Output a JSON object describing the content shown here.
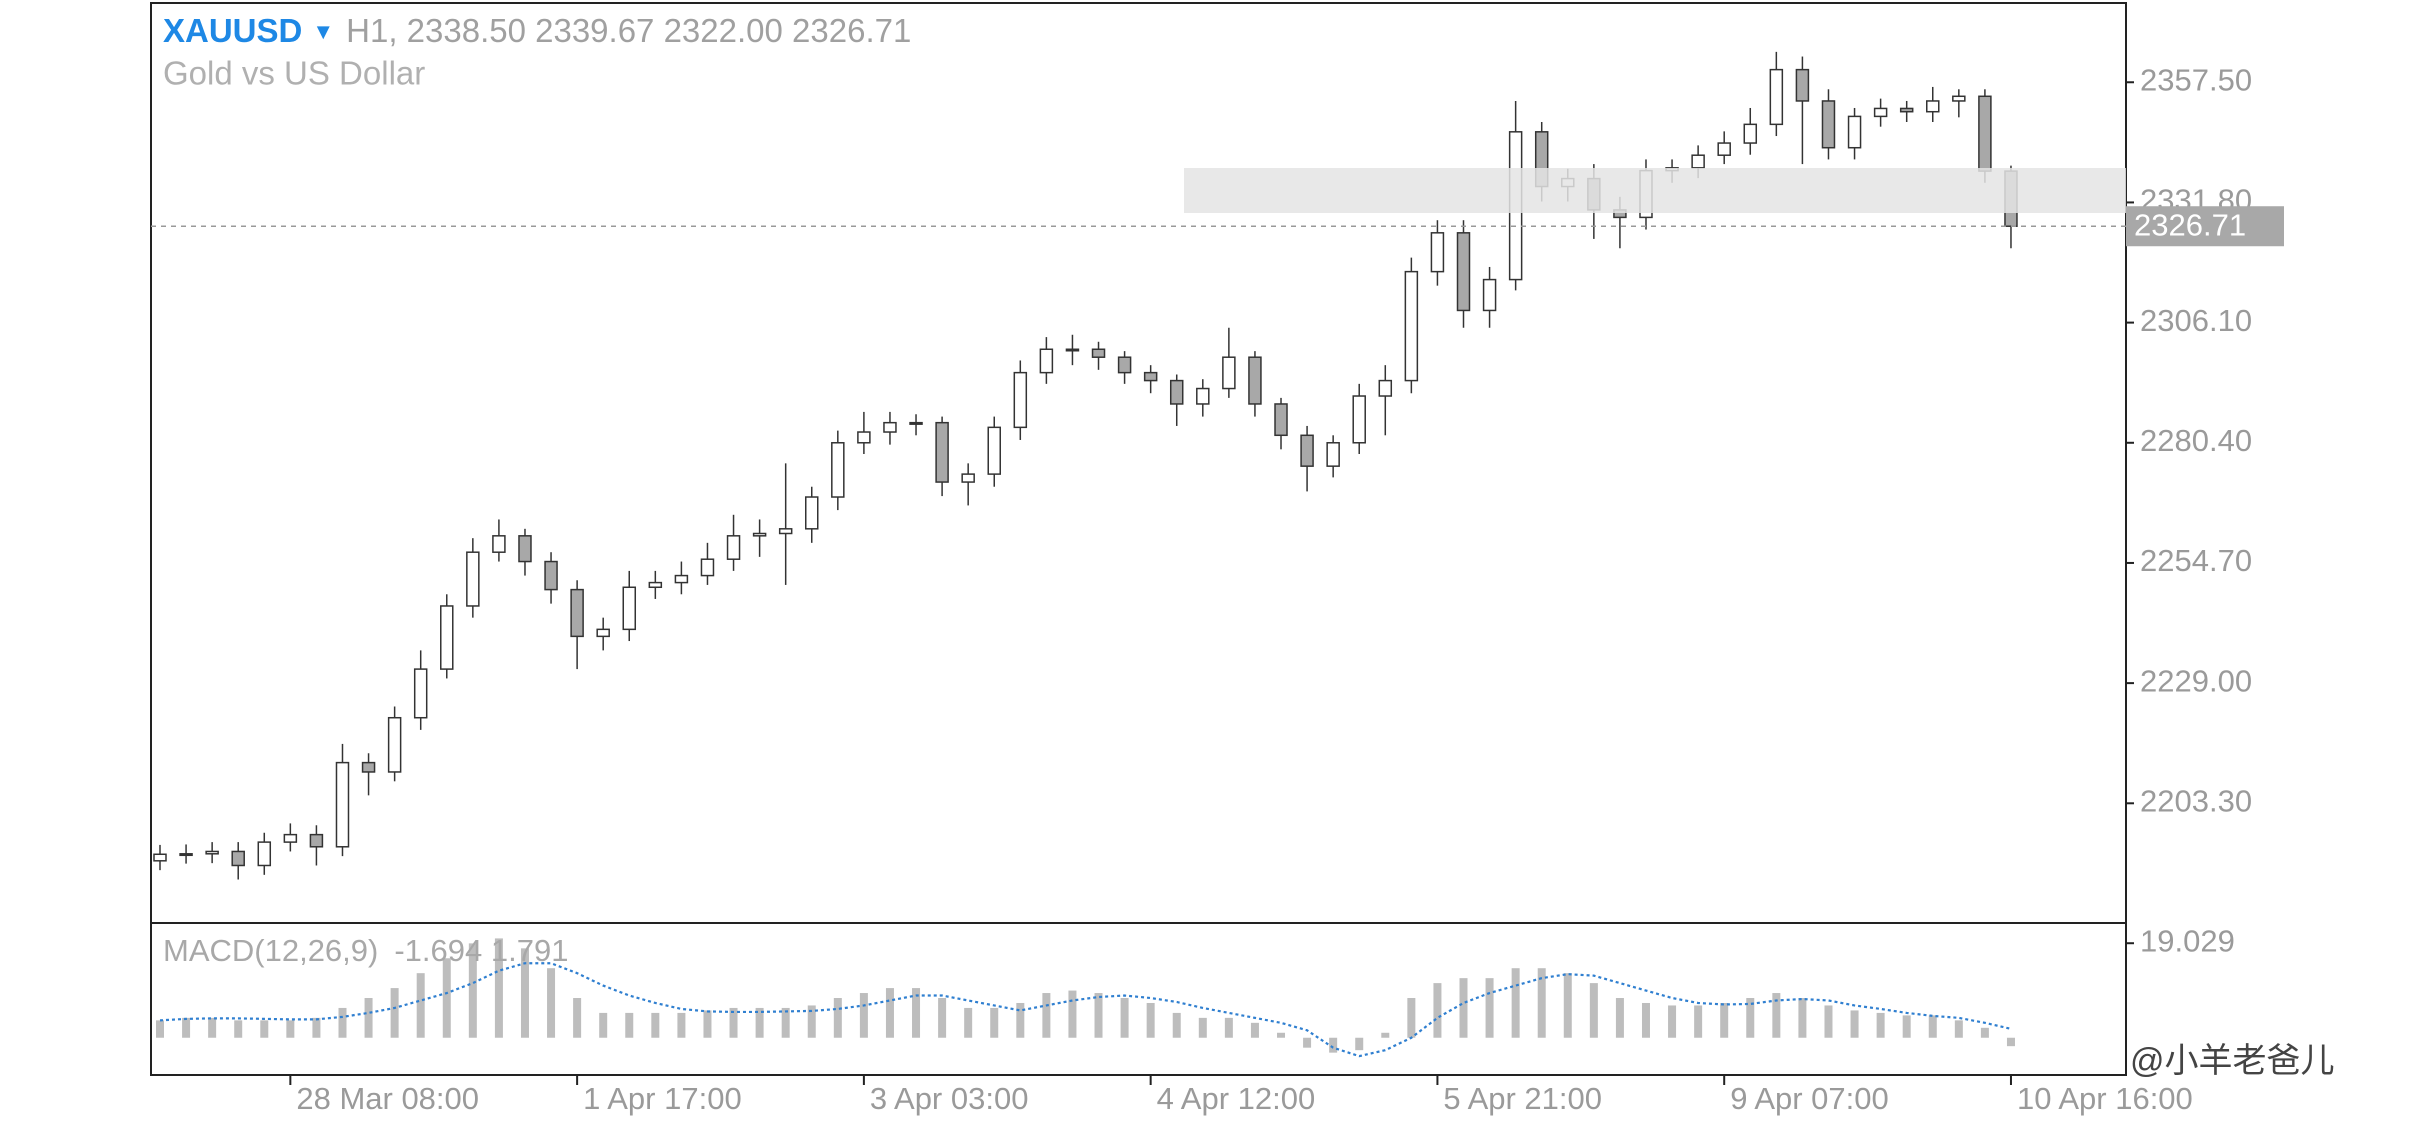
{
  "chart_data": [
    {
      "type": "candlestick",
      "title": "XAUUSD",
      "subtitle": "Gold vs US Dollar",
      "info": "H1, 2338.50 2339.67 2322.00 2326.71",
      "categories": [
        null,
        null,
        null,
        null,
        null,
        "28 Mar 08:00",
        null,
        null,
        null,
        null,
        null,
        null,
        null,
        null,
        null,
        null,
        "1 Apr 17:00",
        null,
        null,
        null,
        null,
        null,
        null,
        null,
        null,
        null,
        null,
        "3 Apr 03:00",
        null,
        null,
        null,
        null,
        null,
        null,
        null,
        null,
        null,
        null,
        "4 Apr 12:00",
        null,
        null,
        null,
        null,
        null,
        null,
        null,
        null,
        null,
        null,
        "5 Apr 21:00",
        null,
        null,
        null,
        null,
        null,
        null,
        null,
        null,
        null,
        null,
        "9 Apr 07:00",
        null,
        null,
        null,
        null,
        null,
        null,
        null,
        null,
        null,
        null,
        "10 Apr 16:00"
      ],
      "open": [
        2191,
        2192.4,
        2192.5,
        2193,
        2190,
        2195,
        2196.6,
        2194,
        2212,
        2210,
        2221.6,
        2232,
        2245.5,
        2257,
        2260.5,
        2255,
        2249,
        2239,
        2240.5,
        2249.5,
        2250.5,
        2252,
        2255.5,
        2260.5,
        2261,
        2262,
        2268.8,
        2280.4,
        2282.7,
        2284.7,
        2284.7,
        2272,
        2273.7,
        2283.7,
        2295.4,
        2300.4,
        2300.4,
        2298.7,
        2295.4,
        2293.7,
        2288.7,
        2292,
        2298.7,
        2288.7,
        2282,
        2275.4,
        2280.4,
        2290.4,
        2293.7,
        2317,
        2325.3,
        2308.7,
        2315.3,
        2346.9,
        2335.2,
        2336.9,
        2330.2,
        2328.6,
        2338.6,
        2339.2,
        2341.9,
        2344.5,
        2348.5,
        2360.2,
        2353.5,
        2343.5,
        2350.2,
        2351.9,
        2351.2,
        2353.5,
        2354.5,
        2338.5
      ],
      "high": [
        2194.4,
        2194.5,
        2195,
        2195,
        2197,
        2199,
        2198.6,
        2216,
        2214,
        2224,
        2236,
        2248,
        2260,
        2264,
        2262,
        2257,
        2251,
        2243,
        2253,
        2253,
        2255,
        2259,
        2265,
        2264,
        2276,
        2271,
        2283,
        2287,
        2287,
        2286.5,
        2286,
        2276,
        2286,
        2298,
        2303,
        2303.5,
        2302,
        2300,
        2297,
        2295,
        2294,
        2305,
        2300,
        2290,
        2284,
        2282,
        2293,
        2297,
        2320,
        2328,
        2328,
        2318,
        2353.5,
        2349,
        2339,
        2340,
        2333,
        2341,
        2341,
        2344,
        2347,
        2352,
        2364,
        2363,
        2356,
        2352,
        2354,
        2353.5,
        2356.5,
        2356,
        2356,
        2339.67
      ],
      "low": [
        2189,
        2190.4,
        2190.5,
        2187,
        2188,
        2193,
        2190,
        2192,
        2205,
        2208,
        2219,
        2230,
        2243,
        2255,
        2252,
        2246,
        2232,
        2236,
        2238,
        2247,
        2248,
        2250,
        2253,
        2256,
        2250,
        2259,
        2266,
        2278,
        2280,
        2282,
        2269,
        2267,
        2271,
        2281,
        2293,
        2297,
        2296,
        2293,
        2291,
        2284,
        2286,
        2290,
        2286,
        2279,
        2270,
        2273,
        2278,
        2282,
        2291,
        2314,
        2305,
        2305,
        2313,
        2332,
        2332,
        2324,
        2322,
        2326,
        2336,
        2337,
        2340,
        2342,
        2346,
        2340,
        2341,
        2341,
        2348,
        2349,
        2349,
        2350,
        2336,
        2322.0
      ],
      "close": [
        2192.4,
        2192.5,
        2193,
        2190,
        2195,
        2196.6,
        2194,
        2212,
        2210,
        2221.6,
        2232,
        2245.5,
        2257,
        2260.5,
        2255,
        2249,
        2239,
        2240.5,
        2249.5,
        2250.5,
        2252,
        2255.5,
        2260.5,
        2261,
        2262,
        2268.8,
        2280.4,
        2282.7,
        2284.7,
        2284.7,
        2272,
        2273.7,
        2283.7,
        2295.4,
        2300.4,
        2300.4,
        2298.7,
        2295.4,
        2293.7,
        2288.7,
        2292,
        2298.7,
        2288.7,
        2282,
        2275.4,
        2280.4,
        2290.4,
        2293.7,
        2317,
        2325.3,
        2308.7,
        2315.3,
        2346.9,
        2335.2,
        2336.9,
        2330.2,
        2328.6,
        2338.6,
        2339.2,
        2341.9,
        2344.5,
        2348.5,
        2360.2,
        2353.5,
        2343.5,
        2350.2,
        2351.9,
        2351.2,
        2353.5,
        2354.5,
        2338.5,
        2326.71
      ],
      "up_color": "#ffffff",
      "down_color": "#a8a8a8",
      "outline_color": "#333333",
      "ylim": [
        2177.7,
        2374.45
      ],
      "yticks": [
        {
          "value": 2203.3,
          "label": "2203.30"
        },
        {
          "value": 2229.0,
          "label": "2229.00"
        },
        {
          "value": 2254.7,
          "label": "2254.70"
        },
        {
          "value": 2280.4,
          "label": "2280.40"
        },
        {
          "value": 2306.1,
          "label": "2306.10"
        },
        {
          "value": 2331.8,
          "label": "2331.80"
        },
        {
          "value": 2357.5,
          "label": "2357.50"
        }
      ],
      "last_price": {
        "value": 2326.71,
        "label": "2326.71"
      },
      "watermark": "@小羊老爸儿"
    },
    {
      "type": "macd",
      "title": "MACD(12,26,9)",
      "info": "-1.694 1.791",
      "histogram": [
        3.5,
        4,
        4,
        3.5,
        3.5,
        3.5,
        4,
        6,
        8,
        10,
        13,
        16,
        19,
        20,
        18,
        14,
        8,
        5,
        5,
        5,
        5,
        5.5,
        6,
        6,
        6,
        6.5,
        8,
        9,
        10,
        10,
        8,
        6,
        6,
        7,
        9,
        9.5,
        9,
        8,
        7,
        5,
        4,
        4,
        3,
        1,
        -2,
        -3,
        -2.5,
        1,
        8,
        11,
        12,
        12,
        14,
        14,
        13,
        11,
        8,
        7,
        6.5,
        6.5,
        7,
        8,
        9,
        8,
        6.5,
        5.5,
        5,
        4.5,
        4.5,
        3.5,
        2,
        -1.694
      ],
      "signal": [
        3.5,
        3.8,
        3.9,
        3.9,
        3.8,
        3.7,
        3.7,
        4.2,
        5,
        6,
        7.5,
        9,
        11,
        13.5,
        15,
        15,
        13,
        10.5,
        8.5,
        7,
        5.8,
        5.3,
        5.2,
        5.2,
        5.3,
        5.4,
        5.8,
        6.5,
        7.5,
        8.5,
        8.5,
        7.5,
        6.5,
        5.5,
        6.5,
        7.5,
        8.2,
        8.5,
        8,
        7.2,
        6,
        5,
        4,
        3,
        1.5,
        -2,
        -3.7,
        -2.5,
        0,
        4,
        7,
        9,
        10.5,
        12,
        12.8,
        12.5,
        11,
        9.5,
        8,
        7,
        6.7,
        6.8,
        7.5,
        7.8,
        7.5,
        6.5,
        5.8,
        5,
        4.4,
        4,
        3,
        1.791
      ],
      "histogram_color": "#bdbdbd",
      "signal_color": "#2f7fd0",
      "ylim": [
        -7.5,
        23.1
      ],
      "yticks": [
        19.029
      ]
    }
  ]
}
